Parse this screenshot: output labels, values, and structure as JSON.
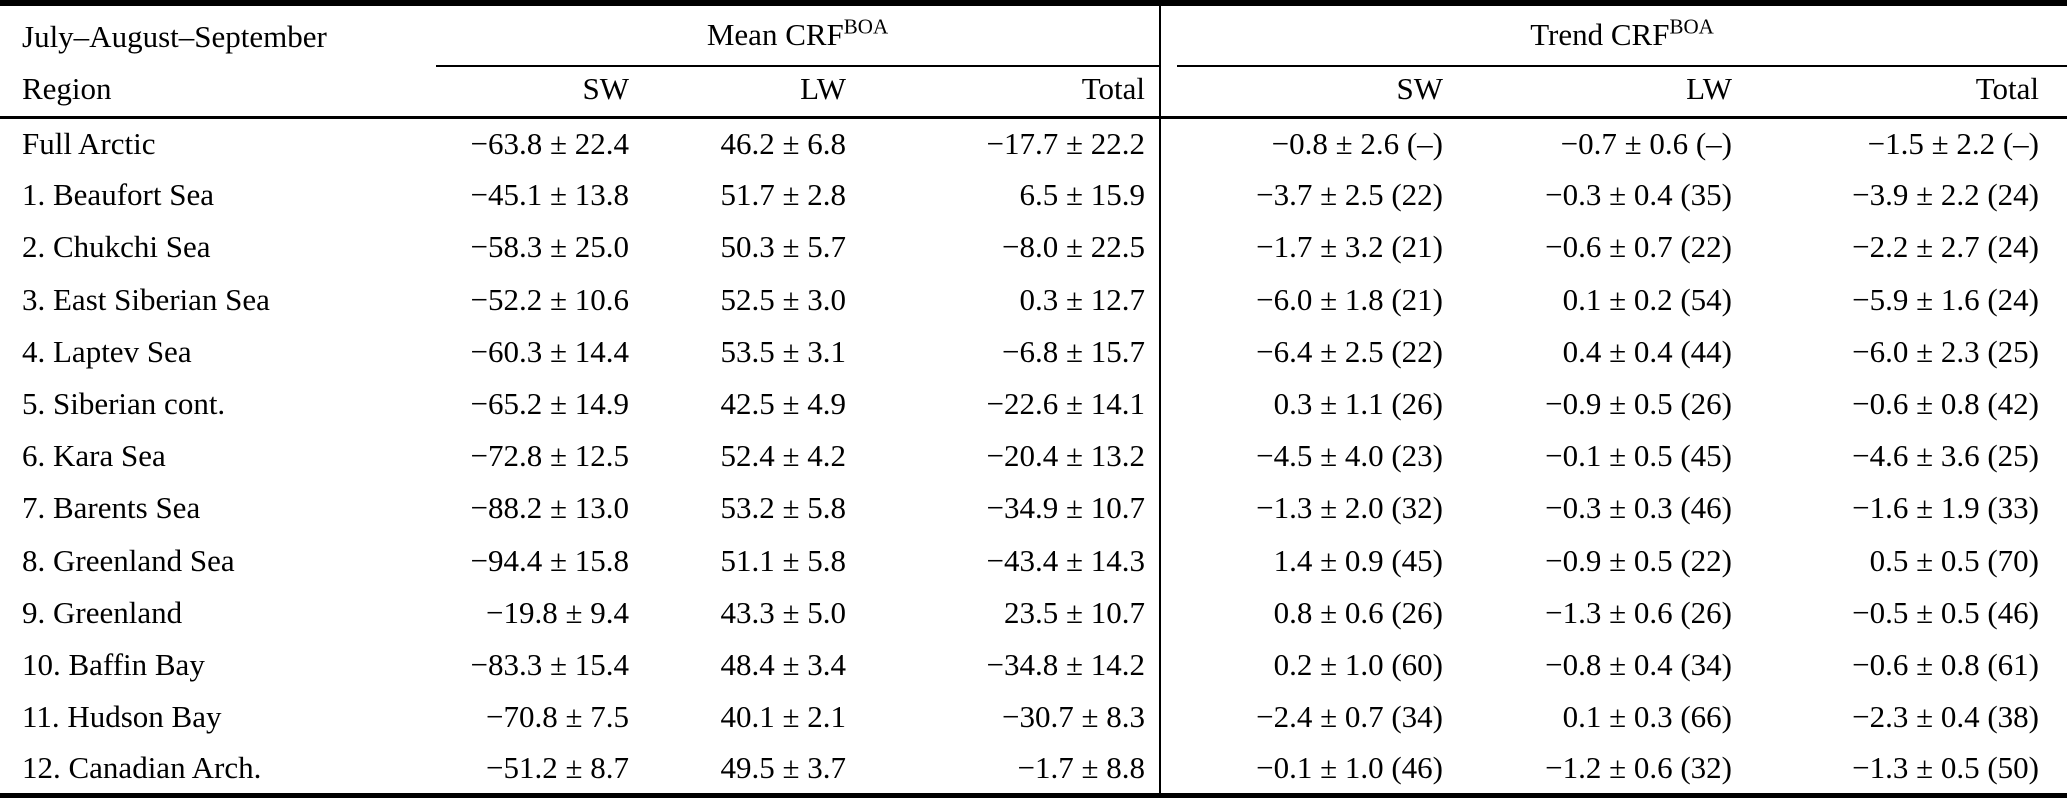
{
  "header": {
    "period_label": "July–August–September",
    "region_label": "Region",
    "mean_group": {
      "title": "Mean CRF",
      "sup": "BOA",
      "columns": [
        "SW",
        "LW",
        "Total"
      ]
    },
    "trend_group": {
      "title": "Trend CRF",
      "sup": "BOA",
      "columns": [
        "SW",
        "LW",
        "Total"
      ]
    }
  },
  "rows": [
    {
      "region": "Full Arctic",
      "mean_sw": "−63.8 ± 22.4",
      "mean_lw": "46.2 ± 6.8",
      "mean_total": "−17.7 ± 22.2",
      "trend_sw": "−0.8 ± 2.6 (–)",
      "trend_lw": "−0.7 ± 0.6 (–)",
      "trend_total": "−1.5 ± 2.2 (–)"
    },
    {
      "region": "1. Beaufort Sea",
      "mean_sw": "−45.1 ± 13.8",
      "mean_lw": "51.7 ± 2.8",
      "mean_total": "6.5 ± 15.9",
      "trend_sw": "−3.7 ± 2.5 (22)",
      "trend_lw": "−0.3 ± 0.4 (35)",
      "trend_total": "−3.9 ± 2.2 (24)"
    },
    {
      "region": "2. Chukchi Sea",
      "mean_sw": "−58.3 ± 25.0",
      "mean_lw": "50.3 ± 5.7",
      "mean_total": "−8.0 ± 22.5",
      "trend_sw": "−1.7 ± 3.2 (21)",
      "trend_lw": "−0.6 ± 0.7 (22)",
      "trend_total": "−2.2 ± 2.7 (24)"
    },
    {
      "region": "3. East Siberian Sea",
      "mean_sw": "−52.2 ± 10.6",
      "mean_lw": "52.5 ± 3.0",
      "mean_total": "0.3 ± 12.7",
      "trend_sw": "−6.0 ± 1.8 (21)",
      "trend_lw": "0.1 ± 0.2 (54)",
      "trend_total": "−5.9 ± 1.6 (24)"
    },
    {
      "region": "4. Laptev Sea",
      "mean_sw": "−60.3 ± 14.4",
      "mean_lw": "53.5 ± 3.1",
      "mean_total": "−6.8 ± 15.7",
      "trend_sw": "−6.4 ± 2.5 (22)",
      "trend_lw": "0.4 ± 0.4 (44)",
      "trend_total": "−6.0 ± 2.3 (25)"
    },
    {
      "region": "5. Siberian cont.",
      "mean_sw": "−65.2 ± 14.9",
      "mean_lw": "42.5 ± 4.9",
      "mean_total": "−22.6 ± 14.1",
      "trend_sw": "0.3 ± 1.1 (26)",
      "trend_lw": "−0.9 ± 0.5 (26)",
      "trend_total": "−0.6 ± 0.8 (42)"
    },
    {
      "region": "6. Kara Sea",
      "mean_sw": "−72.8 ± 12.5",
      "mean_lw": "52.4 ± 4.2",
      "mean_total": "−20.4 ± 13.2",
      "trend_sw": "−4.5 ± 4.0 (23)",
      "trend_lw": "−0.1 ± 0.5 (45)",
      "trend_total": "−4.6 ± 3.6 (25)"
    },
    {
      "region": "7. Barents Sea",
      "mean_sw": "−88.2 ± 13.0",
      "mean_lw": "53.2 ± 5.8",
      "mean_total": "−34.9 ± 10.7",
      "trend_sw": "−1.3 ± 2.0 (32)",
      "trend_lw": "−0.3 ± 0.3 (46)",
      "trend_total": "−1.6 ± 1.9 (33)"
    },
    {
      "region": "8. Greenland Sea",
      "mean_sw": "−94.4 ± 15.8",
      "mean_lw": "51.1 ± 5.8",
      "mean_total": "−43.4 ± 14.3",
      "trend_sw": "1.4 ± 0.9 (45)",
      "trend_lw": "−0.9 ± 0.5 (22)",
      "trend_total": "0.5 ± 0.5 (70)"
    },
    {
      "region": "9. Greenland",
      "mean_sw": "−19.8 ± 9.4",
      "mean_lw": "43.3 ± 5.0",
      "mean_total": "23.5 ± 10.7",
      "trend_sw": "0.8 ± 0.6 (26)",
      "trend_lw": "−1.3 ± 0.6 (26)",
      "trend_total": "−0.5 ± 0.5 (46)"
    },
    {
      "region": "10. Baffin Bay",
      "mean_sw": "−83.3 ± 15.4",
      "mean_lw": "48.4 ± 3.4",
      "mean_total": "−34.8 ± 14.2",
      "trend_sw": "0.2 ± 1.0 (60)",
      "trend_lw": "−0.8 ± 0.4 (34)",
      "trend_total": "−0.6 ± 0.8 (61)"
    },
    {
      "region": "11. Hudson Bay",
      "mean_sw": "−70.8 ± 7.5",
      "mean_lw": "40.1 ± 2.1",
      "mean_total": "−30.7 ± 8.3",
      "trend_sw": "−2.4 ± 0.7 (34)",
      "trend_lw": "0.1 ± 0.3 (66)",
      "trend_total": "−2.3 ± 0.4 (38)"
    },
    {
      "region": "12. Canadian Arch.",
      "mean_sw": "−51.2 ± 8.7",
      "mean_lw": "49.5 ± 3.7",
      "mean_total": "−1.7 ± 8.8",
      "trend_sw": "−0.1 ± 1.0 (46)",
      "trend_lw": "−1.2 ± 0.6 (32)",
      "trend_total": "−1.3 ± 0.5 (50)"
    }
  ]
}
